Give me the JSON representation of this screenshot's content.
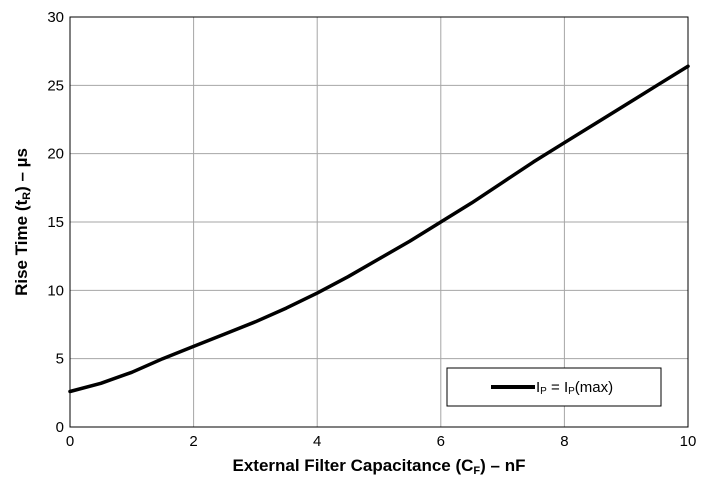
{
  "chart_data": {
    "type": "line",
    "xlabel_parts": {
      "main": "External Filter Capacitance (C",
      "sub": "F",
      "tail": ") – nF"
    },
    "ylabel_parts": {
      "main": "Rise Time (t",
      "sub": "R",
      "tail": ") – µs"
    },
    "xlim": [
      0,
      10
    ],
    "ylim": [
      0,
      30
    ],
    "x_ticks": [
      0,
      2,
      4,
      6,
      8,
      10
    ],
    "y_ticks": [
      0,
      5,
      10,
      15,
      20,
      25,
      30
    ],
    "grid": true,
    "legend_position": "bottom-right",
    "series": [
      {
        "legend_parts": {
          "a": "I",
          "a_sub": "P",
          "mid": " = I",
          "b_sub": "P",
          "tail": "(max)"
        },
        "color": "#000000",
        "x": [
          0,
          0.5,
          1,
          1.5,
          2,
          2.5,
          3,
          3.5,
          4,
          4.5,
          5,
          5.5,
          6,
          6.5,
          7,
          7.5,
          8,
          8.5,
          9,
          9.5,
          10
        ],
        "y": [
          2.6,
          3.2,
          4.0,
          5.0,
          5.9,
          6.8,
          7.7,
          8.7,
          9.8,
          11.0,
          12.3,
          13.6,
          15.0,
          16.4,
          17.9,
          19.4,
          20.8,
          22.2,
          23.6,
          25.0,
          26.4
        ]
      }
    ]
  }
}
